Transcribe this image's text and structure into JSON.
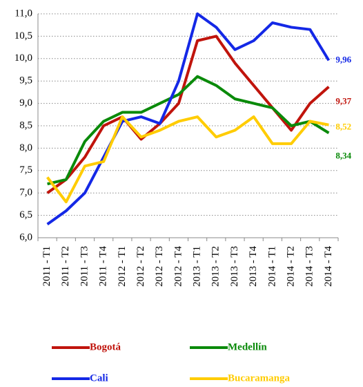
{
  "chart_data": {
    "type": "line",
    "categories": [
      "2011 - T1",
      "2011 - T2",
      "2011 - T3",
      "2011 - T4",
      "2012 - T1",
      "2012 - T2",
      "2012 - T3",
      "2012 - T4",
      "2013 - T1",
      "2013 - T2",
      "2013 - T3",
      "2013 - T4",
      "2014 - T1",
      "2014 - T2",
      "2014 - T3",
      "2014 - T4"
    ],
    "series": [
      {
        "name": "Bogotá",
        "color": "#c0140c",
        "values": [
          7.0,
          7.3,
          7.8,
          8.5,
          8.7,
          8.2,
          8.55,
          9.0,
          10.4,
          10.5,
          9.9,
          9.4,
          8.9,
          8.4,
          9.0,
          9.37
        ],
        "value_labels": [
          null,
          null,
          null,
          null,
          null,
          null,
          null,
          null,
          null,
          null,
          null,
          null,
          null,
          null,
          null,
          "9,37"
        ]
      },
      {
        "name": "Medellín",
        "color": "#0a8a0a",
        "values": [
          7.2,
          7.3,
          8.15,
          8.6,
          8.8,
          8.8,
          9.0,
          9.2,
          9.6,
          9.4,
          9.1,
          9.0,
          8.9,
          8.5,
          8.6,
          8.34
        ],
        "value_labels": [
          null,
          null,
          null,
          null,
          null,
          null,
          null,
          null,
          null,
          null,
          null,
          null,
          null,
          null,
          null,
          "8,34"
        ]
      },
      {
        "name": "Cali",
        "color": "#1428e6",
        "values": [
          6.3,
          6.6,
          7.0,
          7.8,
          8.6,
          8.7,
          8.55,
          9.5,
          11.0,
          10.7,
          10.2,
          10.4,
          10.8,
          10.7,
          10.65,
          9.96
        ],
        "value_labels": [
          null,
          null,
          null,
          null,
          null,
          null,
          null,
          null,
          null,
          null,
          null,
          null,
          null,
          null,
          null,
          "9,96"
        ]
      },
      {
        "name": "Bucaramanga",
        "color": "#ffcc00",
        "values": [
          7.35,
          6.8,
          7.6,
          7.7,
          8.7,
          8.25,
          8.4,
          8.6,
          8.7,
          8.25,
          8.4,
          8.7,
          8.1,
          8.1,
          8.6,
          8.52
        ],
        "value_labels": [
          null,
          null,
          null,
          null,
          null,
          null,
          null,
          null,
          null,
          null,
          null,
          null,
          null,
          null,
          null,
          "8,52"
        ]
      }
    ],
    "ylim": [
      6.0,
      11.0
    ],
    "yticks": [
      {
        "value": 6.0,
        "label": "6,0"
      },
      {
        "value": 6.5,
        "label": "6,5"
      },
      {
        "value": 7.0,
        "label": "7,0"
      },
      {
        "value": 7.5,
        "label": "7,5"
      },
      {
        "value": 8.0,
        "label": "8,0"
      },
      {
        "value": 8.5,
        "label": "8,5"
      },
      {
        "value": 9.0,
        "label": "9,0"
      },
      {
        "value": 9.5,
        "label": "9,5"
      },
      {
        "value": 10.0,
        "label": "10,0"
      },
      {
        "value": 10.5,
        "label": "10,5"
      },
      {
        "value": 11.0,
        "label": "11,0"
      }
    ],
    "grid": true,
    "legend": "bottom"
  }
}
